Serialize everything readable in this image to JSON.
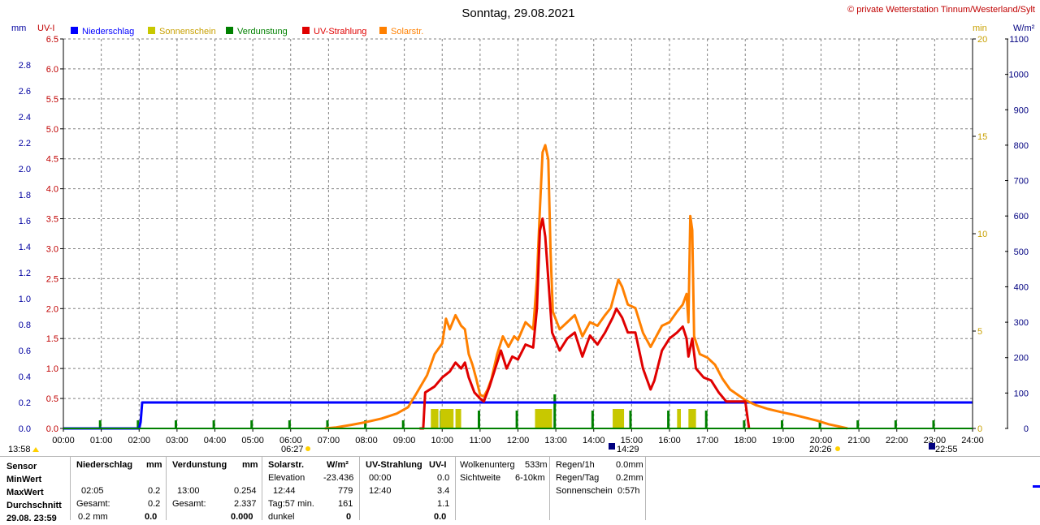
{
  "header": {
    "title": "Sonntag, 29.08.2021",
    "copyright": "© private Wetterstation Tinnum/Westerland/Sylt",
    "unit_mm": "mm",
    "unit_uv": "UV-I",
    "unit_min": "min",
    "unit_wm2": "W/m²"
  },
  "legend": [
    {
      "label": "Niederschlag",
      "color": "#0000ff"
    },
    {
      "label": "Sonnenschein",
      "color": "#c8c800"
    },
    {
      "label": "Verdunstung",
      "color": "#008000"
    },
    {
      "label": "UV-Strahlung",
      "color": "#e00000"
    },
    {
      "label": "Solarstr.",
      "color": "#ff8000"
    }
  ],
  "chart_data": {
    "type": "line",
    "x_ticks": [
      "00:00",
      "01:00",
      "02:00",
      "03:00",
      "04:00",
      "05:00",
      "06:00",
      "07:00",
      "08:00",
      "09:00",
      "10:00",
      "11:00",
      "12:00",
      "13:00",
      "14:00",
      "15:00",
      "16:00",
      "17:00",
      "18:00",
      "19:00",
      "20:00",
      "21:00",
      "22:00",
      "23:00",
      "24:00"
    ],
    "xlim": [
      0,
      24
    ],
    "axes": {
      "mm": {
        "range": [
          0,
          3.0
        ],
        "ticks": [
          "0.0",
          "0.2",
          "0.4",
          "0.6",
          "0.8",
          "1.0",
          "1.2",
          "1.4",
          "1.6",
          "1.8",
          "2.0",
          "2.2",
          "2.4",
          "2.6",
          "2.8"
        ],
        "color": "#0000a0"
      },
      "uv": {
        "range": [
          0,
          6.5
        ],
        "ticks": [
          "0.0",
          "0.5",
          "1.0",
          "1.5",
          "2.0",
          "2.5",
          "3.0",
          "3.5",
          "4.0",
          "4.5",
          "5.0",
          "5.5",
          "6.0",
          "6.5"
        ],
        "color": "#c00000"
      },
      "min": {
        "range": [
          0,
          20
        ],
        "ticks": [
          "0",
          "5",
          "10",
          "15",
          "20"
        ],
        "color": "#c8a000"
      },
      "wm2": {
        "range": [
          0,
          1100
        ],
        "ticks": [
          "0",
          "100",
          "200",
          "300",
          "400",
          "500",
          "600",
          "700",
          "800",
          "900",
          "1000",
          "1100"
        ],
        "color": "#000080"
      }
    },
    "markers": {
      "sunrise": "06:27",
      "sunset": "20:26",
      "moonrise": "14:29",
      "moonset": "22:55",
      "min_time": "13:58"
    },
    "series": [
      {
        "name": "Niederschlag",
        "axis": "mm",
        "color": "#0000ff",
        "points": [
          [
            0,
            0
          ],
          [
            2.0,
            0
          ],
          [
            2.04,
            0.05
          ],
          [
            2.08,
            0.2
          ],
          [
            24,
            0.2
          ]
        ]
      },
      {
        "name": "Solarstr.",
        "axis": "wm2",
        "color": "#ff8000",
        "points": [
          [
            6.9,
            0
          ],
          [
            7.2,
            3
          ],
          [
            7.6,
            10
          ],
          [
            8.0,
            18
          ],
          [
            8.4,
            28
          ],
          [
            8.8,
            42
          ],
          [
            9.1,
            60
          ],
          [
            9.3,
            95
          ],
          [
            9.6,
            150
          ],
          [
            9.8,
            210
          ],
          [
            10.0,
            240
          ],
          [
            10.1,
            310
          ],
          [
            10.2,
            280
          ],
          [
            10.35,
            320
          ],
          [
            10.5,
            290
          ],
          [
            10.6,
            280
          ],
          [
            10.7,
            210
          ],
          [
            10.8,
            180
          ],
          [
            10.9,
            140
          ],
          [
            11.0,
            95
          ],
          [
            11.1,
            90
          ],
          [
            11.2,
            110
          ],
          [
            11.3,
            140
          ],
          [
            11.45,
            210
          ],
          [
            11.6,
            260
          ],
          [
            11.75,
            230
          ],
          [
            11.9,
            260
          ],
          [
            12.0,
            250
          ],
          [
            12.2,
            300
          ],
          [
            12.4,
            280
          ],
          [
            12.5,
            420
          ],
          [
            12.58,
            620
          ],
          [
            12.65,
            780
          ],
          [
            12.72,
            800
          ],
          [
            12.8,
            760
          ],
          [
            12.86,
            500
          ],
          [
            12.92,
            330
          ],
          [
            13.1,
            280
          ],
          [
            13.3,
            300
          ],
          [
            13.5,
            320
          ],
          [
            13.7,
            260
          ],
          [
            13.9,
            300
          ],
          [
            14.1,
            290
          ],
          [
            14.3,
            320
          ],
          [
            14.45,
            340
          ],
          [
            14.55,
            380
          ],
          [
            14.65,
            420
          ],
          [
            14.75,
            400
          ],
          [
            14.9,
            350
          ],
          [
            15.1,
            340
          ],
          [
            15.3,
            270
          ],
          [
            15.5,
            230
          ],
          [
            15.6,
            250
          ],
          [
            15.8,
            290
          ],
          [
            16.0,
            300
          ],
          [
            16.2,
            330
          ],
          [
            16.35,
            350
          ],
          [
            16.45,
            380
          ],
          [
            16.5,
            300
          ],
          [
            16.55,
            600
          ],
          [
            16.6,
            560
          ],
          [
            16.65,
            260
          ],
          [
            16.8,
            210
          ],
          [
            17.0,
            200
          ],
          [
            17.2,
            180
          ],
          [
            17.4,
            140
          ],
          [
            17.6,
            110
          ],
          [
            17.8,
            95
          ],
          [
            18.0,
            80
          ],
          [
            18.3,
            65
          ],
          [
            18.6,
            55
          ],
          [
            19.0,
            45
          ],
          [
            19.3,
            38
          ],
          [
            19.6,
            30
          ],
          [
            19.9,
            22
          ],
          [
            20.2,
            12
          ],
          [
            20.5,
            5
          ],
          [
            20.7,
            0
          ]
        ]
      },
      {
        "name": "UV-Strahlung",
        "axis": "uv",
        "color": "#e00000",
        "points": [
          [
            9.4,
            0
          ],
          [
            9.5,
            0
          ],
          [
            9.55,
            0.6
          ],
          [
            9.8,
            0.7
          ],
          [
            10.0,
            0.85
          ],
          [
            10.2,
            0.95
          ],
          [
            10.35,
            1.1
          ],
          [
            10.5,
            1.0
          ],
          [
            10.6,
            1.1
          ],
          [
            10.7,
            0.85
          ],
          [
            10.85,
            0.6
          ],
          [
            11.0,
            0.5
          ],
          [
            11.1,
            0.45
          ],
          [
            11.25,
            0.7
          ],
          [
            11.4,
            1.0
          ],
          [
            11.55,
            1.3
          ],
          [
            11.7,
            1.0
          ],
          [
            11.85,
            1.2
          ],
          [
            12.0,
            1.15
          ],
          [
            12.2,
            1.4
          ],
          [
            12.4,
            1.35
          ],
          [
            12.5,
            2.0
          ],
          [
            12.58,
            3.3
          ],
          [
            12.65,
            3.5
          ],
          [
            12.72,
            3.2
          ],
          [
            12.8,
            2.5
          ],
          [
            12.9,
            1.6
          ],
          [
            13.1,
            1.3
          ],
          [
            13.3,
            1.5
          ],
          [
            13.5,
            1.6
          ],
          [
            13.7,
            1.2
          ],
          [
            13.9,
            1.55
          ],
          [
            14.1,
            1.4
          ],
          [
            14.3,
            1.6
          ],
          [
            14.5,
            1.85
          ],
          [
            14.6,
            2.0
          ],
          [
            14.75,
            1.85
          ],
          [
            14.9,
            1.6
          ],
          [
            15.1,
            1.6
          ],
          [
            15.3,
            1.0
          ],
          [
            15.5,
            0.65
          ],
          [
            15.6,
            0.8
          ],
          [
            15.8,
            1.3
          ],
          [
            16.0,
            1.5
          ],
          [
            16.2,
            1.6
          ],
          [
            16.35,
            1.7
          ],
          [
            16.45,
            1.5
          ],
          [
            16.5,
            1.2
          ],
          [
            16.6,
            1.5
          ],
          [
            16.7,
            1.0
          ],
          [
            16.9,
            0.85
          ],
          [
            17.1,
            0.8
          ],
          [
            17.3,
            0.6
          ],
          [
            17.5,
            0.45
          ],
          [
            17.8,
            0.45
          ],
          [
            18.0,
            0.45
          ],
          [
            18.1,
            0.0
          ]
        ]
      },
      {
        "name": "Sonnenschein",
        "axis": "min",
        "color": "#c8c800",
        "bars": [
          [
            9.7,
            9.9
          ],
          [
            9.95,
            10.3
          ],
          [
            10.35,
            10.5
          ],
          [
            12.45,
            12.9
          ],
          [
            14.5,
            14.8
          ],
          [
            16.2,
            16.3
          ],
          [
            16.5,
            16.7
          ]
        ],
        "value": 1
      }
    ]
  },
  "stats": {
    "row_labels": [
      "Sensor",
      "MinWert",
      "MaxWert",
      "Durchschnitt",
      "29.08. 23:59"
    ],
    "niederschlag": {
      "title": "Niederschlag",
      "unit": "mm",
      "max_time": "02:05",
      "max_val": "0.2",
      "total_label": "Gesamt:",
      "total_val": "0.2",
      "last_val": "0.2 mm",
      "last_num": "0.0"
    },
    "verdunstung": {
      "title": "Verdunstung",
      "unit": "mm",
      "max_time": "13:00",
      "max_val": "0.254",
      "total_label": "Gesamt:",
      "total_val": "2.337",
      "last_num": "0.000"
    },
    "solar": {
      "title": "Solarstr.",
      "unit": "W/m²",
      "elev_label": "Elevation",
      "elev_val": "-23.436",
      "max_time": "12:44",
      "max_val": "779",
      "day_label": "Tag:57 min.",
      "day_val": "161",
      "dark_label": "dunkel",
      "dark_val": "0"
    },
    "uv": {
      "title": "UV-Strahlung",
      "unit": "UV-I",
      "min_time": "00:00",
      "min_val": "0.0",
      "max_time": "12:40",
      "max_val": "3.4",
      "avg_val": "1.1",
      "last_val": "0.0"
    },
    "wolken": {
      "label1": "Wolkenunterg",
      "val1": "533m",
      "label2": "Sichtweite",
      "val2": "6-10km"
    },
    "regen": {
      "label1": "Regen/1h",
      "val1": "0.0mm",
      "label2": "Regen/Tag",
      "val2": "0.2mm",
      "label3": "Sonnenschein",
      "val3": "0:57h"
    }
  }
}
